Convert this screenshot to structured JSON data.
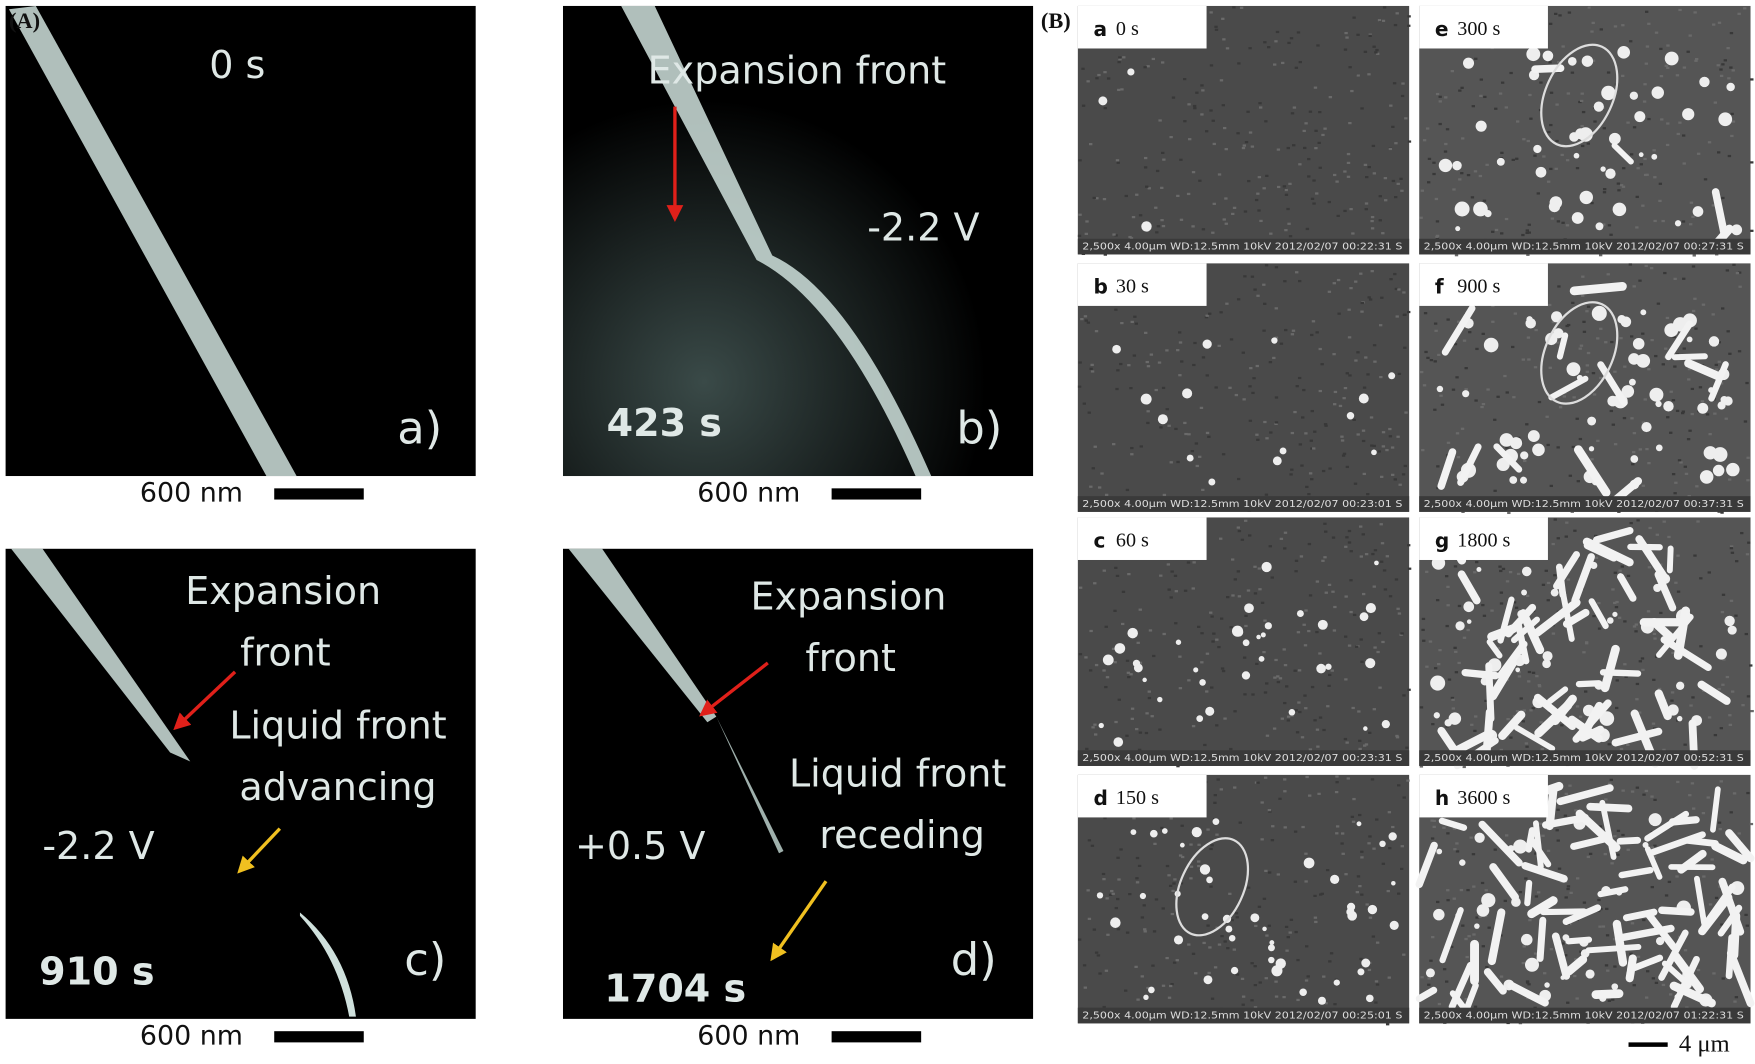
{
  "figure": {
    "part_a": {
      "label": "(A)",
      "panels": [
        {
          "time": "0 s",
          "letter": "a)",
          "scale_bar": "600 nm"
        },
        {
          "time": "423 s",
          "letter": "b)",
          "voltage": "-2.2 V",
          "annotations": [
            [
              "Expansion front"
            ]
          ],
          "scale_bar": "600 nm"
        },
        {
          "time": "910 s",
          "letter": "c)",
          "voltage": "-2.2 V",
          "annotations": [
            [
              "Expansion",
              "front"
            ],
            [
              "Liquid front",
              "advancing"
            ]
          ],
          "scale_bar": "600 nm"
        },
        {
          "time": "1704 s",
          "letter": "d)",
          "voltage": "+0.5 V",
          "annotations": [
            [
              "Expansion",
              "front"
            ],
            [
              "Liquid front",
              "receding"
            ]
          ],
          "scale_bar": "600 nm"
        }
      ]
    },
    "part_b": {
      "label": "(B)",
      "scale_bar": "4 μm",
      "panels": [
        {
          "letter": "a",
          "time": "0 s",
          "info": "2,500x 4.00μm WD:12.5mm 10kV 2012/02/07 00:22:31 S"
        },
        {
          "letter": "b",
          "time": "30 s",
          "info": "2,500x 4.00μm WD:12.5mm 10kV 2012/02/07 00:23:01 S"
        },
        {
          "letter": "c",
          "time": "60 s",
          "info": "2,500x 4.00μm WD:12.5mm 10kV 2012/02/07 00:23:31 S"
        },
        {
          "letter": "d",
          "time": "150 s",
          "info": "2,500x 4.00μm WD:12.5mm 10kV 2012/02/07 00:25:01 S"
        },
        {
          "letter": "e",
          "time": "300 s",
          "info": "2,500x 4.00μm WD:12.5mm 10kV 2012/02/07 00:27:31 S"
        },
        {
          "letter": "f",
          "time": "900 s",
          "info": "2,500x 4.00μm WD:12.5mm 10kV 2012/02/07 00:37:31 S"
        },
        {
          "letter": "g",
          "time": "1800 s",
          "info": "2,500x 4.00μm WD:12.5mm 10kV 2012/02/07 00:52:31 S"
        },
        {
          "letter": "h",
          "time": "3600 s",
          "info": "2,500x 4.00μm WD:12.5mm 10kV 2012/02/07 01:22:31 S"
        }
      ]
    }
  }
}
